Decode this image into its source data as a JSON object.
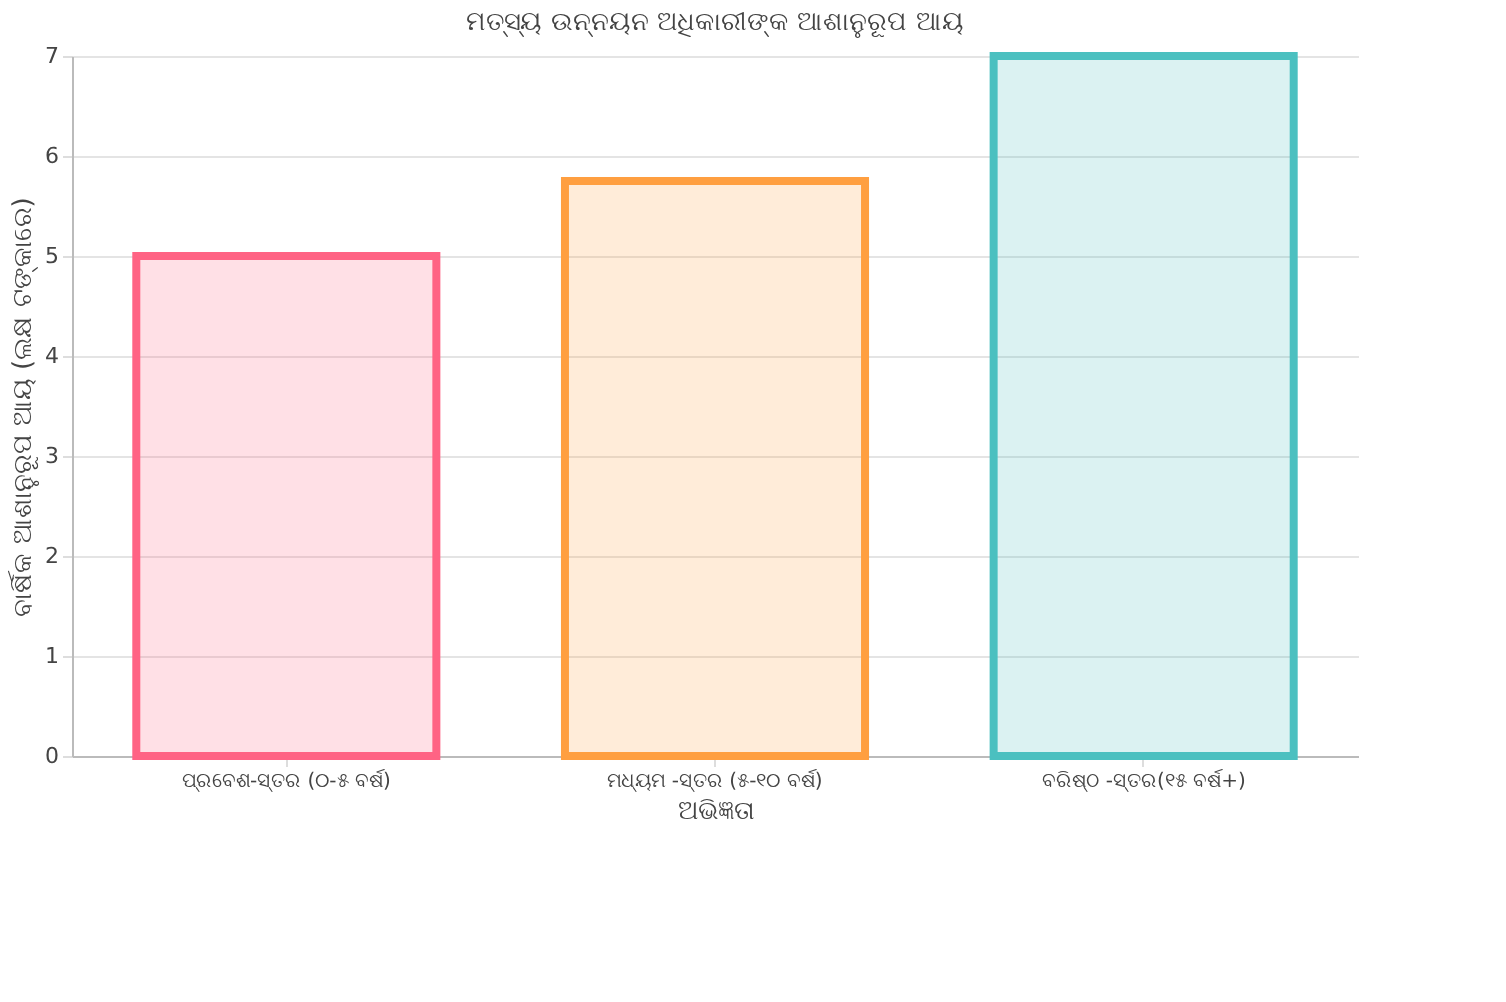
{
  "chart_data": {
    "type": "bar",
    "title": "ମତ୍ସ୍ୟ ଉନ୍ନୟନ ଅଧିକାରୀଙ୍କ ଆଶାନୁରୂପ ଆୟ",
    "xlabel": "ଅଭିଜ୍ଞତା",
    "ylabel": "ବାର୍ଷିକ ଆଶାନୁରୂପ ଆୟ (ଲକ୍ଷ ଟଙ୍କାରେ)",
    "categories": [
      "ପ୍ରବେଶ-ସ୍ତର (୦-୫ ବର୍ଷ)",
      "ମଧ୍ୟମ -ସ୍ତର (୫-୧୦ ବର୍ଷ)",
      "ବରିଷ୍ଠ -ସ୍ତର(୧୫ ବର୍ଷ+)"
    ],
    "values": [
      5,
      5.75,
      7
    ],
    "colors": [
      "#ff6384",
      "#ff9f40",
      "#4bc0c0"
    ],
    "ylim": [
      0,
      7
    ],
    "yticks": [
      0,
      1,
      2,
      3,
      4,
      5,
      6,
      7
    ],
    "grid": "y",
    "legend": false
  }
}
